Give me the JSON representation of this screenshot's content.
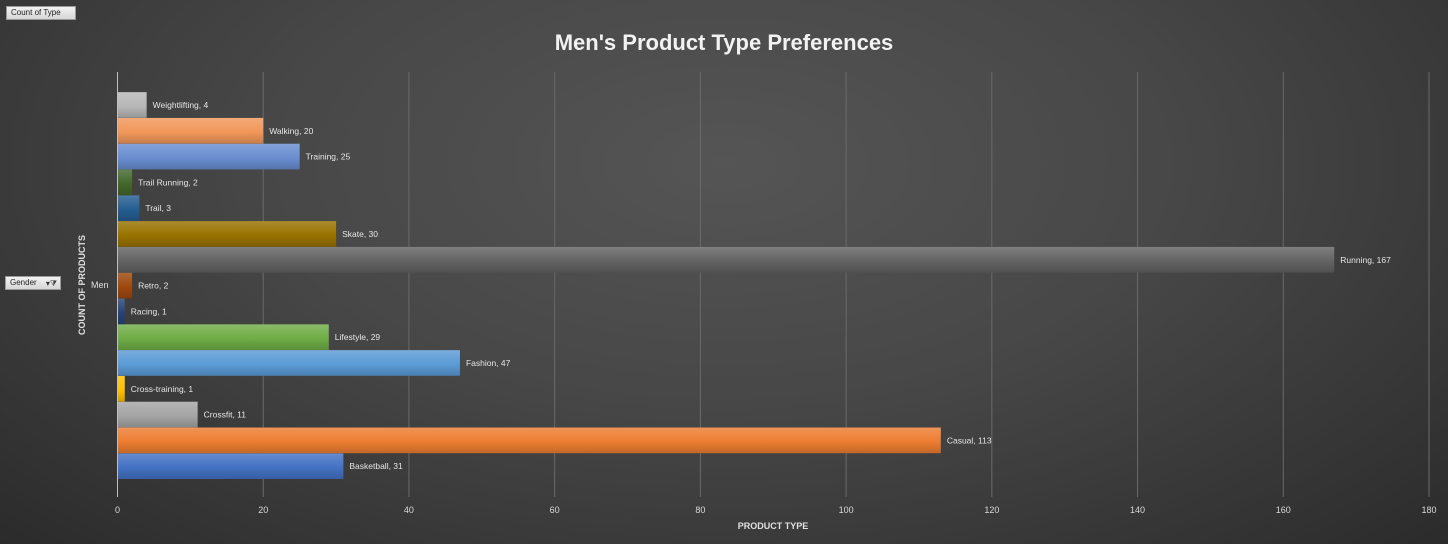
{
  "pivot": {
    "values_button": "Count of Type",
    "row_field_button": "Gender"
  },
  "chart_data": {
    "type": "bar",
    "orientation": "horizontal",
    "title": "Men's Product Type Preferences",
    "xlabel": "PRODUCT TYPE",
    "ylabel": "COUNT OF PRODUCTS",
    "category_group": "Men",
    "xlim": [
      0,
      180
    ],
    "xticks": [
      0,
      20,
      40,
      60,
      80,
      100,
      120,
      140,
      160,
      180
    ],
    "grid": "vertical",
    "data_labels": "series name, value",
    "series": [
      {
        "name": "Basketball",
        "value": 31,
        "color": "#4472C4"
      },
      {
        "name": "Casual",
        "value": 113,
        "color": "#ED7D31"
      },
      {
        "name": "Crossfit",
        "value": 11,
        "color": "#A5A5A5"
      },
      {
        "name": "Cross-training",
        "value": 1,
        "color": "#FFC000"
      },
      {
        "name": "Fashion",
        "value": 47,
        "color": "#5B9BD5"
      },
      {
        "name": "Lifestyle",
        "value": 29,
        "color": "#70AD47"
      },
      {
        "name": "Racing",
        "value": 1,
        "color": "#264478"
      },
      {
        "name": "Retro",
        "value": 2,
        "color": "#9E480E"
      },
      {
        "name": "Running",
        "value": 167,
        "color": "#636363"
      },
      {
        "name": "Skate",
        "value": 30,
        "color": "#997300"
      },
      {
        "name": "Trail",
        "value": 3,
        "color": "#255E91"
      },
      {
        "name": "Trail Running",
        "value": 2,
        "color": "#43682B"
      },
      {
        "name": "Training",
        "value": 25,
        "color": "#698ED0"
      },
      {
        "name": "Walking",
        "value": 20,
        "color": "#F1975A"
      },
      {
        "name": "Weightlifting",
        "value": 4,
        "color": "#B7B7B7"
      }
    ]
  }
}
